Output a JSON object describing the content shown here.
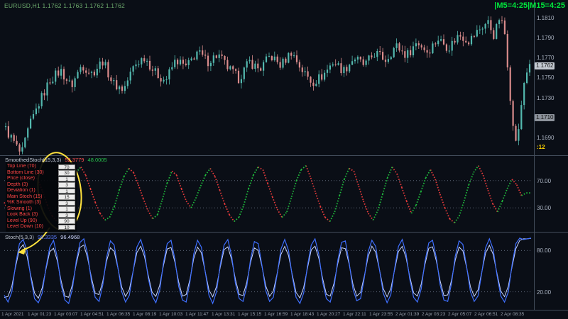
{
  "window": {
    "title": "EURUSD,H1 1.1762 1.1763 1.1762 1.1762"
  },
  "timer": {
    "text": "|M5=4:25|M15=4:25"
  },
  "countdown": {
    "text": ":12"
  },
  "colors": {
    "up_candle": "#53b8ae",
    "down_candle": "#d98b8b",
    "osc_up": "#1fba3c",
    "osc_down": "#e33a3a",
    "stoch_main": "#3f6fff",
    "stoch_signal": "#c7d4ff",
    "annotation": "#ffe23e",
    "level": "#5a6374"
  },
  "main_chart": {
    "price_ticks": [
      "1.1810",
      "1.1790",
      "1.1770",
      "1.1750",
      "1.1730",
      "1.1710",
      "1.1690"
    ],
    "price_badges": [
      {
        "label": "1.1762",
        "price": 1.1762,
        "variant": "primary"
      },
      {
        "label": "1.1710",
        "price": 1.171,
        "variant": "secondary"
      }
    ],
    "anchors": [
      [
        0.0,
        1.1698
      ],
      [
        0.015,
        1.1686
      ],
      [
        0.03,
        1.1672
      ],
      [
        0.045,
        1.1701
      ],
      [
        0.065,
        1.1726
      ],
      [
        0.085,
        1.1748
      ],
      [
        0.105,
        1.1757
      ],
      [
        0.125,
        1.1741
      ],
      [
        0.145,
        1.1763
      ],
      [
        0.165,
        1.1754
      ],
      [
        0.185,
        1.1767
      ],
      [
        0.205,
        1.1744
      ],
      [
        0.225,
        1.1738
      ],
      [
        0.245,
        1.1762
      ],
      [
        0.265,
        1.1771
      ],
      [
        0.285,
        1.1755
      ],
      [
        0.305,
        1.1747
      ],
      [
        0.325,
        1.1768
      ],
      [
        0.345,
        1.176
      ],
      [
        0.365,
        1.1776
      ],
      [
        0.385,
        1.1766
      ],
      [
        0.405,
        1.1773
      ],
      [
        0.425,
        1.1759
      ],
      [
        0.445,
        1.1749
      ],
      [
        0.465,
        1.1766
      ],
      [
        0.485,
        1.1758
      ],
      [
        0.505,
        1.1772
      ],
      [
        0.525,
        1.1762
      ],
      [
        0.545,
        1.1776
      ],
      [
        0.565,
        1.1758
      ],
      [
        0.585,
        1.1745
      ],
      [
        0.605,
        1.1752
      ],
      [
        0.625,
        1.1766
      ],
      [
        0.645,
        1.1757
      ],
      [
        0.665,
        1.177
      ],
      [
        0.685,
        1.1762
      ],
      [
        0.705,
        1.1775
      ],
      [
        0.725,
        1.1768
      ],
      [
        0.745,
        1.1782
      ],
      [
        0.765,
        1.1772
      ],
      [
        0.785,
        1.1786
      ],
      [
        0.805,
        1.1776
      ],
      [
        0.825,
        1.1789
      ],
      [
        0.845,
        1.178
      ],
      [
        0.865,
        1.1793
      ],
      [
        0.885,
        1.1787
      ],
      [
        0.905,
        1.1799
      ],
      [
        0.92,
        1.1806
      ],
      [
        0.932,
        1.1792
      ],
      [
        0.944,
        1.1812
      ],
      [
        0.952,
        1.1796
      ],
      [
        0.958,
        1.176
      ],
      [
        0.964,
        1.1722
      ],
      [
        0.97,
        1.1692
      ],
      [
        0.976,
        1.1684
      ],
      [
        0.982,
        1.1712
      ],
      [
        0.988,
        1.1742
      ],
      [
        0.994,
        1.1755
      ],
      [
        1.0,
        1.1762
      ]
    ]
  },
  "middle_indicator": {
    "name": "SmoothedStoch(15,3,3)",
    "value1": "52.3779",
    "value2": "48.0005",
    "levels": [
      70,
      30
    ],
    "axis_ticks": [
      {
        "label": "70.00",
        "value": 70
      },
      {
        "label": "30.00",
        "value": 30
      }
    ],
    "series": [
      38,
      24,
      14,
      22,
      46,
      68,
      80,
      72,
      54,
      34,
      18,
      10,
      20,
      40,
      64,
      82,
      90,
      78,
      58,
      38,
      22,
      12,
      16,
      32,
      56,
      76,
      88,
      82,
      64,
      44,
      26,
      14,
      20,
      42,
      66,
      84,
      78,
      58,
      40,
      30,
      44,
      62,
      78,
      88,
      76,
      56,
      36,
      20,
      10,
      16,
      34,
      58,
      78,
      90,
      86,
      66,
      46,
      28,
      16,
      24,
      46,
      70,
      86,
      92,
      74,
      52,
      32,
      16,
      10,
      24,
      48,
      72,
      88,
      84,
      62,
      40,
      22,
      12,
      26,
      50,
      74,
      90,
      80,
      60,
      40,
      22,
      34,
      54,
      74,
      86,
      72,
      50,
      30,
      14,
      8,
      18,
      40,
      64,
      82,
      92,
      78,
      56,
      36,
      24,
      40,
      58,
      72,
      64,
      48,
      52,
      52
    ]
  },
  "params_panel": {
    "rows": [
      {
        "label": "Top Line (70)",
        "value": "70"
      },
      {
        "label": "Bottom Line (30)",
        "value": "30"
      },
      {
        "label": "Price (close)",
        "value": "1"
      },
      {
        "label": "Depth (3)",
        "value": "3"
      },
      {
        "label": "Deviation (1)",
        "value": "1"
      },
      {
        "label": "Main Stoch (15)",
        "value": "15"
      },
      {
        "label": "%K Smooth (3)",
        "value": "3"
      },
      {
        "label": "Slowing (1)",
        "value": "1"
      },
      {
        "label": "Look Back (3)",
        "value": "3"
      },
      {
        "label": "Level Up (90)",
        "value": "90"
      },
      {
        "label": "Level Down (10)",
        "value": "10"
      }
    ]
  },
  "bottom_indicator": {
    "name": "Stoch(5,3,3)",
    "value1": "98.3335",
    "value2": "96.4968",
    "levels": [
      80,
      20
    ],
    "axis_ticks": [
      {
        "label": "80.00",
        "value": 80
      },
      {
        "label": "20.00",
        "value": 20
      }
    ],
    "series": [
      15,
      5,
      20,
      60,
      90,
      96,
      80,
      40,
      10,
      4,
      18,
      55,
      85,
      95,
      70,
      30,
      8,
      3,
      25,
      65,
      92,
      97,
      75,
      35,
      12,
      6,
      30,
      70,
      94,
      88,
      55,
      20,
      5,
      15,
      50,
      85,
      96,
      78,
      40,
      14,
      4,
      22,
      62,
      90,
      95,
      68,
      28,
      8,
      5,
      35,
      75,
      95,
      85,
      50,
      15,
      3,
      20,
      60,
      88,
      96,
      72,
      32,
      10,
      6,
      28,
      68,
      93,
      90,
      58,
      22,
      6,
      12,
      45,
      82,
      96,
      80,
      42,
      12,
      3,
      18,
      58,
      88,
      97,
      74,
      34,
      10,
      5,
      26,
      66,
      92,
      94,
      62,
      24,
      7,
      10,
      40,
      78,
      95,
      86,
      52,
      18,
      4,
      16,
      54,
      86,
      96,
      76,
      38,
      12,
      5,
      24,
      64,
      91,
      95,
      70,
      30,
      8,
      6,
      32,
      72,
      94,
      89,
      56,
      20,
      6,
      14,
      48,
      84,
      97,
      82,
      44,
      14,
      5,
      20,
      60,
      90,
      98,
      96,
      97,
      98
    ]
  },
  "time_axis": {
    "labels": [
      "1 Apr 2021",
      "1 Apr 01:23",
      "1 Apr 03:07",
      "1 Apr 04:51",
      "1 Apr 06:35",
      "1 Apr 08:19",
      "1 Apr 10:03",
      "1 Apr 11:47",
      "1 Apr 13:31",
      "1 Apr 15:15",
      "1 Apr 16:59",
      "1 Apr 18:43",
      "1 Apr 20:27",
      "1 Apr 22:11",
      "1 Apr 23:55",
      "2 Apr 01:39",
      "2 Apr 03:23",
      "2 Apr 05:07",
      "2 Apr 06:51",
      "2 Apr 08:35"
    ]
  }
}
